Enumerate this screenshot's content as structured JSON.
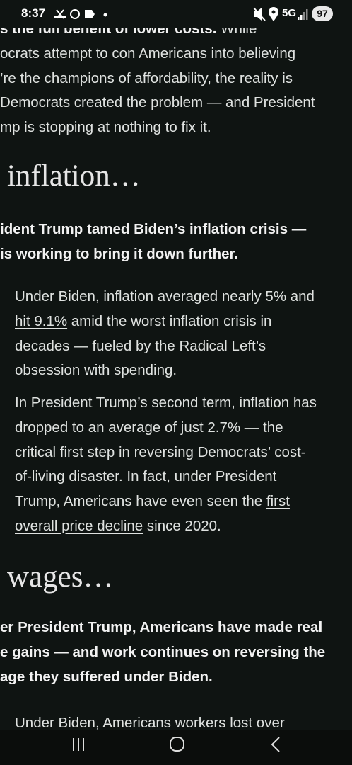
{
  "status_bar": {
    "time": "8:37",
    "network": "5G",
    "battery": "97"
  },
  "article": {
    "intro": [
      [
        {
          "text": "s the full benefit of lower costs.",
          "bold": true
        },
        {
          "text": " While"
        }
      ],
      "ocrats attempt to con Americans into believing",
      "’re the champions of affordability, the reality is",
      "Democrats created the problem — and President",
      "mp is stopping at nothing to fix it."
    ],
    "heading_1": "inflation…",
    "summary_1": [
      "ident Trump tamed Biden’s inflation crisis —",
      "is working to bring it down further."
    ],
    "bullet_1": [
      "Under Biden, inflation averaged nearly 5% and",
      [
        {
          "text": "hit 9.1%",
          "underline": true
        },
        {
          "text": " amid the worst inflation crisis in"
        }
      ],
      "decades — fueled by the Radical Left’s",
      "obsession with spending."
    ],
    "bullet_2": [
      "In President Trump’s second term, inflation has",
      "dropped to an average of just 2.7% — the",
      "critical first step in reversing Democrats’ cost-",
      "of-living disaster. In fact, under President",
      [
        {
          "text": "Trump, Americans have even seen the "
        },
        {
          "text": "first",
          "underline": true
        }
      ],
      [
        {
          "text": "overall price decline",
          "underline": true
        },
        {
          "text": " since 2020."
        }
      ]
    ],
    "heading_2": "wages…",
    "summary_2": [
      "er President Trump, Americans have made real",
      "e gains — and work continues on reversing the",
      "age they suffered under Biden."
    ],
    "bullet_3": [
      "Under Biden, Americans workers lost over"
    ]
  }
}
